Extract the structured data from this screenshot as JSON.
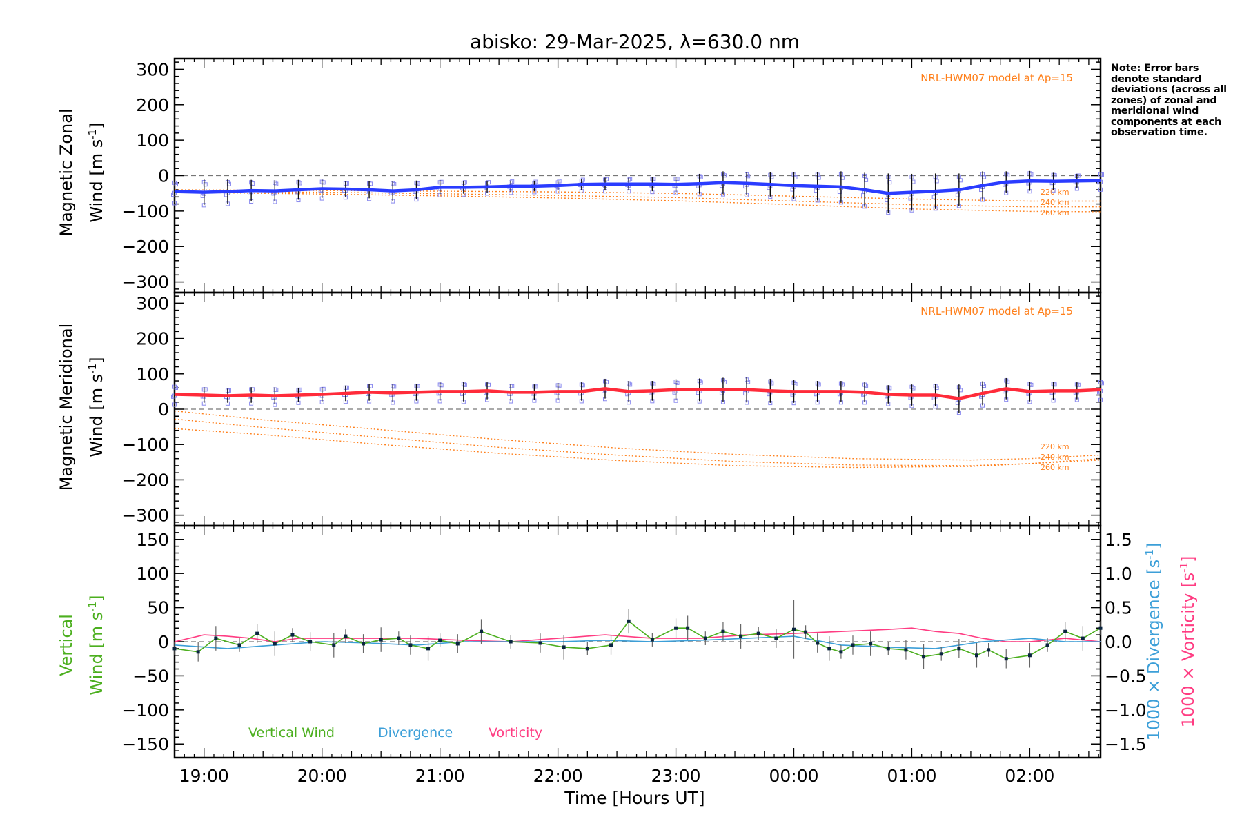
{
  "chart_data": {
    "title": "abisko: 29-Mar-2025, λ=630.0 nm",
    "note": "Note: Error bars denote standard deviations (across all zones) of zonal and meridional wind components at each observation time.",
    "xlabel": "Time [Hours UT]",
    "x_ticks": [
      "19:00",
      "20:00",
      "21:00",
      "22:00",
      "23:00",
      "00:00",
      "01:00",
      "02:00"
    ],
    "x_range_hours": [
      18.75,
      26.6
    ],
    "colors": {
      "zonal": "#2a3cff",
      "meridional": "#ff2b3a",
      "model": "#ff7f1a",
      "vertical": "#4caf1f",
      "divergence": "#3c9fd8",
      "vorticity": "#ff3c82",
      "sample": "#8888ee"
    },
    "panels": [
      {
        "type": "line",
        "name": "zonal",
        "ylabel_line1": "Magnetic Zonal",
        "ylabel_line2": "Wind [m s",
        "ylabel_sup": "-1",
        "ylabel_close": "]",
        "ylim": [
          -330,
          330
        ],
        "y_ticks": [
          300,
          200,
          100,
          0,
          -100,
          -200,
          -300
        ],
        "model_label": "NRL-HWM07 model at Ap=15",
        "model_altitudes": [
          "220 km",
          "240 km",
          "260 km"
        ],
        "model_curves": [
          {
            "altitude": "220 km",
            "x": [
              18.75,
              20,
              21,
              22,
              23,
              24,
              25,
              26,
              26.6
            ],
            "values": [
              -40,
              -42,
              -44,
              -46,
              -50,
              -58,
              -66,
              -72,
              -72
            ]
          },
          {
            "altitude": "240 km",
            "x": [
              18.75,
              20,
              21,
              22,
              23,
              24,
              25,
              26,
              26.6
            ],
            "values": [
              -44,
              -47,
              -51,
              -56,
              -62,
              -72,
              -82,
              -88,
              -88
            ]
          },
          {
            "altitude": "260 km",
            "x": [
              18.75,
              20,
              21,
              22,
              23,
              24,
              25,
              26,
              26.6
            ],
            "values": [
              -47,
              -52,
              -57,
              -63,
              -71,
              -82,
              -94,
              -101,
              -102
            ]
          }
        ],
        "series": [
          {
            "name": "Zonal wind",
            "x": [
              18.75,
              19.0,
              19.2,
              19.4,
              19.6,
              19.8,
              20.0,
              20.2,
              20.4,
              20.6,
              20.8,
              21.0,
              21.2,
              21.4,
              21.6,
              21.8,
              22.0,
              22.2,
              22.4,
              22.6,
              22.8,
              23.0,
              23.2,
              23.4,
              23.6,
              23.8,
              24.0,
              24.2,
              24.4,
              24.6,
              24.8,
              25.0,
              25.2,
              25.4,
              25.6,
              25.8,
              26.0,
              26.2,
              26.4,
              26.6
            ],
            "values": [
              -45,
              -47,
              -45,
              -42,
              -43,
              -40,
              -37,
              -38,
              -40,
              -43,
              -40,
              -33,
              -33,
              -32,
              -30,
              -30,
              -28,
              -25,
              -24,
              -24,
              -24,
              -25,
              -23,
              -20,
              -22,
              -25,
              -28,
              -30,
              -32,
              -40,
              -50,
              -47,
              -44,
              -40,
              -28,
              -18,
              -15,
              -16,
              -15,
              -14
            ]
          }
        ],
        "error_bars": [
          32,
          36,
          34,
          30,
          30,
          28,
          26,
          22,
          24,
          28,
          26,
          20,
          18,
          16,
          16,
          14,
          14,
          16,
          18,
          18,
          20,
          22,
          28,
          32,
          32,
          34,
          38,
          40,
          44,
          48,
          56,
          52,
          50,
          46,
          40,
          30,
          28,
          24,
          20,
          24
        ]
      },
      {
        "type": "line",
        "name": "meridional",
        "ylabel_line1": "Magnetic Meridional",
        "ylabel_line2": "Wind [m s",
        "ylabel_sup": "-1",
        "ylabel_close": "]",
        "ylim": [
          -330,
          330
        ],
        "y_ticks": [
          300,
          200,
          100,
          0,
          -100,
          -200,
          -300
        ],
        "model_label": "NRL-HWM07 model at Ap=15",
        "model_altitudes": [
          "220 km",
          "240 km",
          "260 km"
        ],
        "model_curves": [
          {
            "altitude": "220 km",
            "x": [
              18.75,
              19.5,
              20.5,
              21.5,
              22.5,
              23.5,
              24.5,
              25.5,
              26.0,
              26.6
            ],
            "values": [
              -5,
              -30,
              -58,
              -86,
              -110,
              -128,
              -140,
              -144,
              -140,
              -130
            ]
          },
          {
            "altitude": "240 km",
            "x": [
              18.75,
              19.5,
              20.5,
              21.5,
              22.5,
              23.5,
              24.5,
              25.5,
              26.0,
              26.6
            ],
            "values": [
              -28,
              -52,
              -80,
              -108,
              -130,
              -148,
              -158,
              -160,
              -154,
              -140
            ]
          },
          {
            "altitude": "260 km",
            "x": [
              18.75,
              19.5,
              20.5,
              21.5,
              22.5,
              23.5,
              24.5,
              25.5,
              26.0,
              26.6
            ],
            "values": [
              -55,
              -72,
              -100,
              -125,
              -145,
              -160,
              -165,
              -162,
              -154,
              -144
            ]
          }
        ],
        "series": [
          {
            "name": "Meridional wind",
            "x": [
              18.75,
              19.0,
              19.2,
              19.4,
              19.6,
              19.8,
              20.0,
              20.2,
              20.4,
              20.6,
              20.8,
              21.0,
              21.2,
              21.4,
              21.6,
              21.8,
              22.0,
              22.2,
              22.4,
              22.6,
              22.8,
              23.0,
              23.2,
              23.4,
              23.6,
              23.8,
              24.0,
              24.2,
              24.4,
              24.6,
              24.8,
              25.0,
              25.2,
              25.4,
              25.6,
              25.8,
              26.0,
              26.2,
              26.4,
              26.6
            ],
            "values": [
              42,
              40,
              38,
              40,
              38,
              40,
              42,
              45,
              48,
              46,
              48,
              50,
              50,
              52,
              48,
              48,
              50,
              50,
              58,
              50,
              52,
              55,
              55,
              55,
              55,
              52,
              50,
              50,
              50,
              48,
              42,
              40,
              40,
              30,
              45,
              58,
              50,
              52,
              52,
              55
            ]
          }
        ],
        "error_bars": [
          28,
          22,
          20,
          22,
          24,
          20,
          20,
          22,
          24,
          26,
          24,
          26,
          28,
          24,
          24,
          22,
          24,
          26,
          28,
          30,
          28,
          30,
          32,
          34,
          36,
          34,
          32,
          30,
          30,
          28,
          26,
          30,
          32,
          40,
          34,
          30,
          28,
          26,
          24,
          28
        ]
      },
      {
        "type": "line",
        "name": "vertical",
        "ylabel_line1": "Vertical",
        "ylabel_line2": "Wind [m s",
        "ylabel_sup": "-1",
        "ylabel_close": "]",
        "ylim": [
          -170,
          170
        ],
        "y_ticks": [
          150,
          100,
          50,
          0,
          -50,
          -100,
          -150
        ],
        "y2_ticks": [
          "1.5",
          "1.0",
          "0.5",
          "0.0",
          "−0.5",
          "−1.0",
          "−1.5"
        ],
        "y2_values": [
          1.5,
          1.0,
          0.5,
          0.0,
          -0.5,
          -1.0,
          -1.5
        ],
        "y2_range": [
          -1.7,
          1.7
        ],
        "y2_label_div": "1000 × Divergence [s",
        "y2_label_vor": "1000 × Vorticity [s",
        "y2_sup": "-1",
        "y2_close": "]",
        "legend": [
          "Vertical Wind",
          "Divergence",
          "Vorticity"
        ],
        "series": [
          {
            "name": "Vertical Wind",
            "x": [
              18.75,
              18.95,
              19.1,
              19.3,
              19.45,
              19.6,
              19.75,
              19.9,
              20.1,
              20.2,
              20.35,
              20.5,
              20.65,
              20.75,
              20.9,
              21.0,
              21.15,
              21.35,
              21.6,
              21.85,
              22.05,
              22.25,
              22.45,
              22.6,
              22.8,
              23.0,
              23.1,
              23.25,
              23.4,
              23.55,
              23.7,
              23.85,
              24.0,
              24.1,
              24.2,
              24.3,
              24.4,
              24.5,
              24.65,
              24.8,
              24.95,
              25.1,
              25.25,
              25.4,
              25.55,
              25.65,
              25.8,
              26.0,
              26.15,
              26.3,
              26.45,
              26.6
            ],
            "values": [
              -10,
              -15,
              5,
              -5,
              12,
              -3,
              10,
              0,
              -5,
              8,
              -3,
              3,
              5,
              -5,
              -10,
              2,
              -3,
              15,
              0,
              -2,
              -8,
              -10,
              -5,
              30,
              3,
              20,
              20,
              5,
              15,
              8,
              12,
              5,
              18,
              14,
              -2,
              -10,
              -15,
              -5,
              -3,
              -10,
              -12,
              -22,
              -18,
              -10,
              -20,
              -12,
              -25,
              -20,
              -5,
              15,
              5,
              20
            ]
          },
          {
            "name": "Divergence",
            "x": [
              18.75,
              19.2,
              19.6,
              20.0,
              20.4,
              20.8,
              21.2,
              21.6,
              22.0,
              22.4,
              22.8,
              23.2,
              23.6,
              24.0,
              24.4,
              24.8,
              25.2,
              25.6,
              26.0,
              26.3,
              26.6
            ],
            "values": [
              -0.05,
              -0.1,
              -0.05,
              0.0,
              -0.02,
              -0.05,
              0.0,
              0.0,
              0.0,
              0.02,
              0.0,
              0.02,
              0.05,
              0.08,
              -0.05,
              -0.08,
              -0.1,
              0.0,
              0.05,
              0.0,
              0.0
            ]
          },
          {
            "name": "Vorticity",
            "x": [
              18.75,
              19.0,
              19.2,
              19.4,
              19.6,
              19.8,
              20.0,
              20.4,
              20.8,
              21.2,
              21.6,
              22.0,
              22.4,
              22.8,
              23.2,
              23.6,
              24.0,
              24.4,
              24.8,
              25.0,
              25.2,
              25.4,
              25.6,
              25.8,
              26.0,
              26.3,
              26.6
            ],
            "values": [
              0.0,
              0.1,
              0.08,
              0.05,
              0.0,
              0.05,
              0.05,
              0.05,
              0.05,
              0.02,
              0.0,
              0.05,
              0.1,
              0.05,
              0.05,
              0.1,
              0.12,
              0.15,
              0.18,
              0.2,
              0.15,
              0.12,
              0.05,
              0.0,
              0.0,
              0.05,
              0.0
            ]
          }
        ],
        "vertical_error_bars": 10
      }
    ]
  }
}
